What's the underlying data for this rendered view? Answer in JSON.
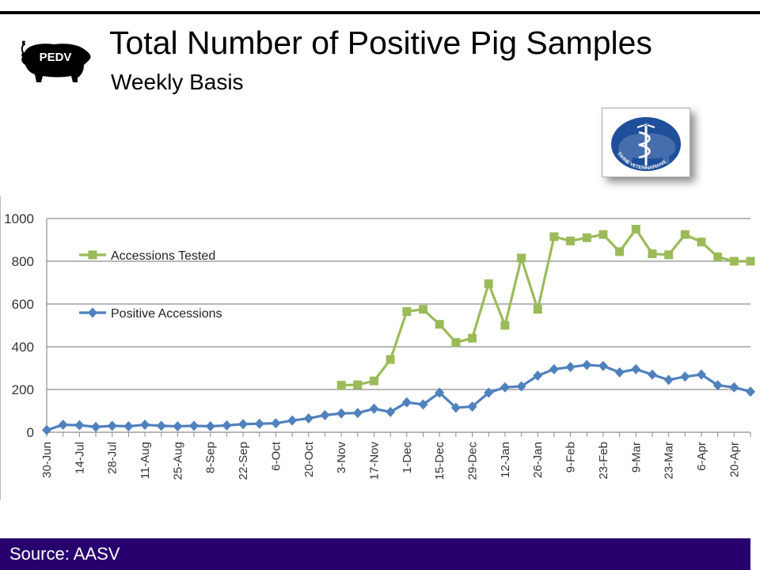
{
  "header": {
    "title": "Total Number of Positive Pig Samples",
    "subtitle": "Weekly Basis",
    "logo_text": "PEDV"
  },
  "emblem": {
    "text_top": "AMERICAN ASSOCIATION",
    "text_bottom": "SWINE VETERINARIANS"
  },
  "footer": {
    "source": "Source: AASV",
    "color": "#27006e"
  },
  "chart_data": {
    "type": "line",
    "title": "",
    "xlabel": "",
    "ylabel": "",
    "ylim": [
      0,
      1000
    ],
    "yticks": [
      0,
      200,
      400,
      600,
      800,
      1000
    ],
    "grid": "horizontal",
    "legend_position": "top-left",
    "x": [
      "30-Jun",
      "7-Jul",
      "14-Jul",
      "21-Jul",
      "28-Jul",
      "4-Aug",
      "11-Aug",
      "18-Aug",
      "25-Aug",
      "1-Sep",
      "8-Sep",
      "15-Sep",
      "22-Sep",
      "29-Sep",
      "6-Oct",
      "13-Oct",
      "20-Oct",
      "27-Oct",
      "3-Nov",
      "10-Nov",
      "17-Nov",
      "24-Nov",
      "1-Dec",
      "8-Dec",
      "15-Dec",
      "22-Dec",
      "29-Dec",
      "5-Jan",
      "12-Jan",
      "19-Jan",
      "26-Jan",
      "2-Feb",
      "9-Feb",
      "16-Feb",
      "23-Feb",
      "2-Mar",
      "9-Mar",
      "16-Mar",
      "23-Mar",
      "30-Mar",
      "6-Apr",
      "13-Apr",
      "20-Apr",
      "27-Apr"
    ],
    "xtick_labels": [
      "30-Jun",
      "14-Jul",
      "28-Jul",
      "11-Aug",
      "25-Aug",
      "8-Sep",
      "22-Sep",
      "6-Oct",
      "20-Oct",
      "3-Nov",
      "17-Nov",
      "1-Dec",
      "15-Dec",
      "29-Dec",
      "12-Jan",
      "26-Jan",
      "9-Feb",
      "23-Feb",
      "9-Mar",
      "23-Mar",
      "6-Apr",
      "20-Apr"
    ],
    "series": [
      {
        "name": "Accessions Tested",
        "color": "#9bbb59",
        "marker": "square",
        "values": [
          null,
          null,
          null,
          null,
          null,
          null,
          null,
          null,
          null,
          null,
          null,
          null,
          null,
          null,
          null,
          null,
          null,
          null,
          220,
          222,
          240,
          340,
          565,
          575,
          505,
          420,
          440,
          695,
          500,
          815,
          575,
          915,
          895,
          910,
          925,
          845,
          950,
          835,
          830,
          925,
          890,
          820,
          800,
          800
        ]
      },
      {
        "name": "Positive Accessions",
        "color": "#4f81bd",
        "marker": "diamond",
        "values": [
          10,
          35,
          33,
          25,
          30,
          28,
          35,
          30,
          28,
          30,
          28,
          32,
          38,
          40,
          42,
          55,
          65,
          80,
          88,
          90,
          110,
          95,
          140,
          130,
          185,
          115,
          120,
          185,
          210,
          215,
          265,
          295,
          305,
          315,
          310,
          280,
          295,
          270,
          245,
          260,
          270,
          220,
          210,
          190
        ]
      }
    ]
  }
}
